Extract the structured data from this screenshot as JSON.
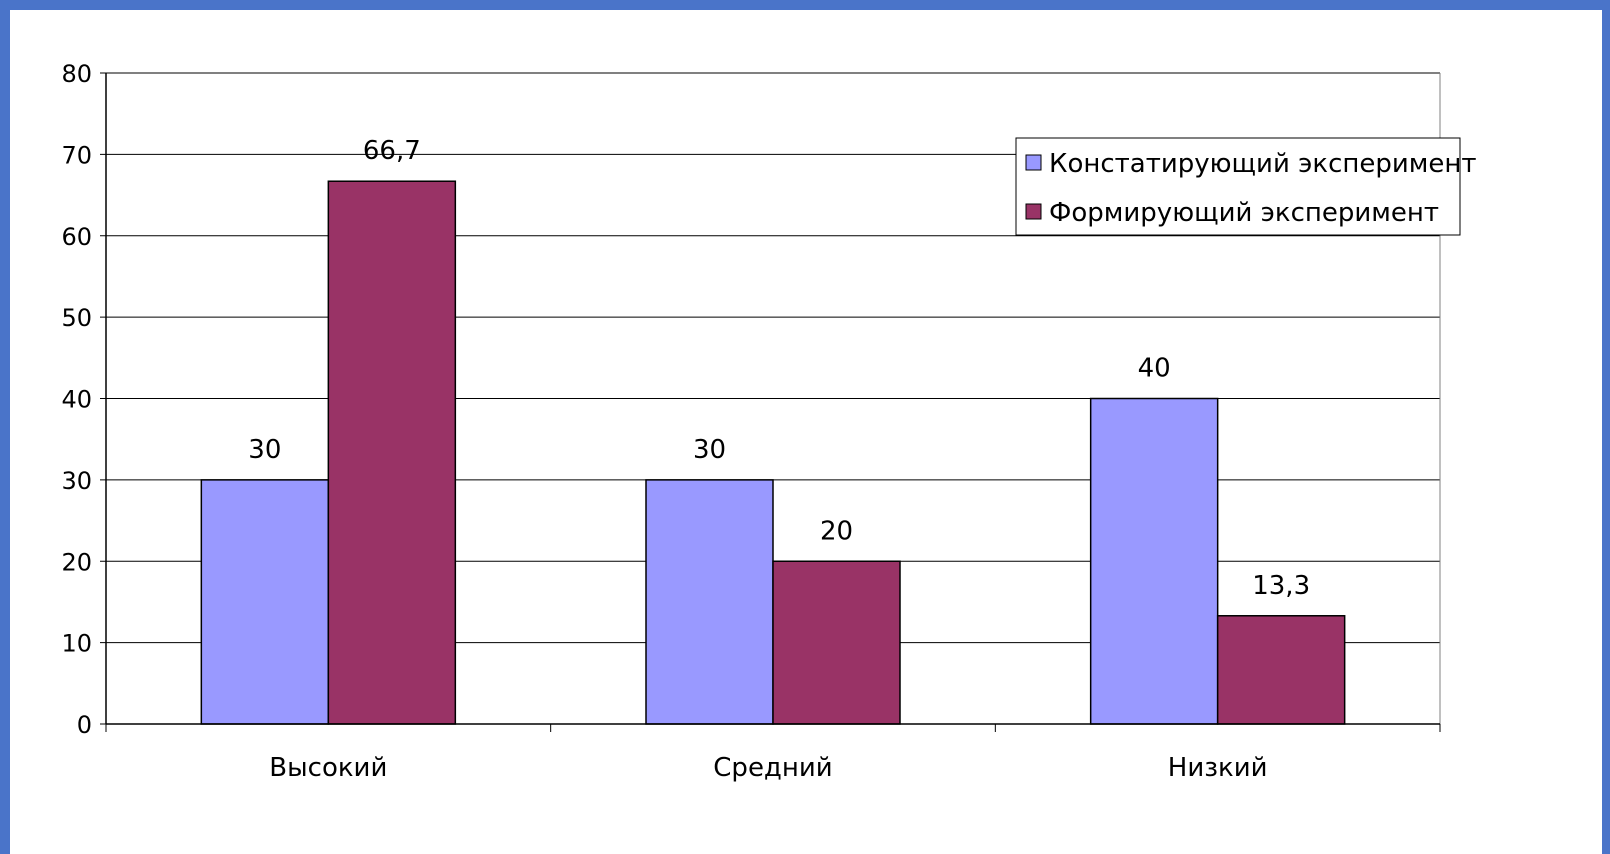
{
  "chart_data": {
    "type": "bar",
    "categories": [
      "Высокий",
      "Средний",
      "Низкий"
    ],
    "series": [
      {
        "name": "Констатирующий эксперимент",
        "values": [
          30,
          30,
          40
        ],
        "labels": [
          "30",
          "30",
          "40"
        ],
        "color": "#9999ff"
      },
      {
        "name": "Формирующий эксперимент",
        "values": [
          66.7,
          20,
          13.3
        ],
        "labels": [
          "66,7",
          "20",
          "13,3"
        ],
        "color": "#993366"
      }
    ],
    "ylim": [
      0,
      80
    ],
    "yticks": [
      0,
      10,
      20,
      30,
      40,
      50,
      60,
      70,
      80
    ],
    "grid": true,
    "legend_position": "top-right",
    "title": "",
    "xlabel": "",
    "ylabel": ""
  },
  "colors": {
    "background": "#4a74c9",
    "plot_background": "#ffffff",
    "gridline": "#000000"
  }
}
